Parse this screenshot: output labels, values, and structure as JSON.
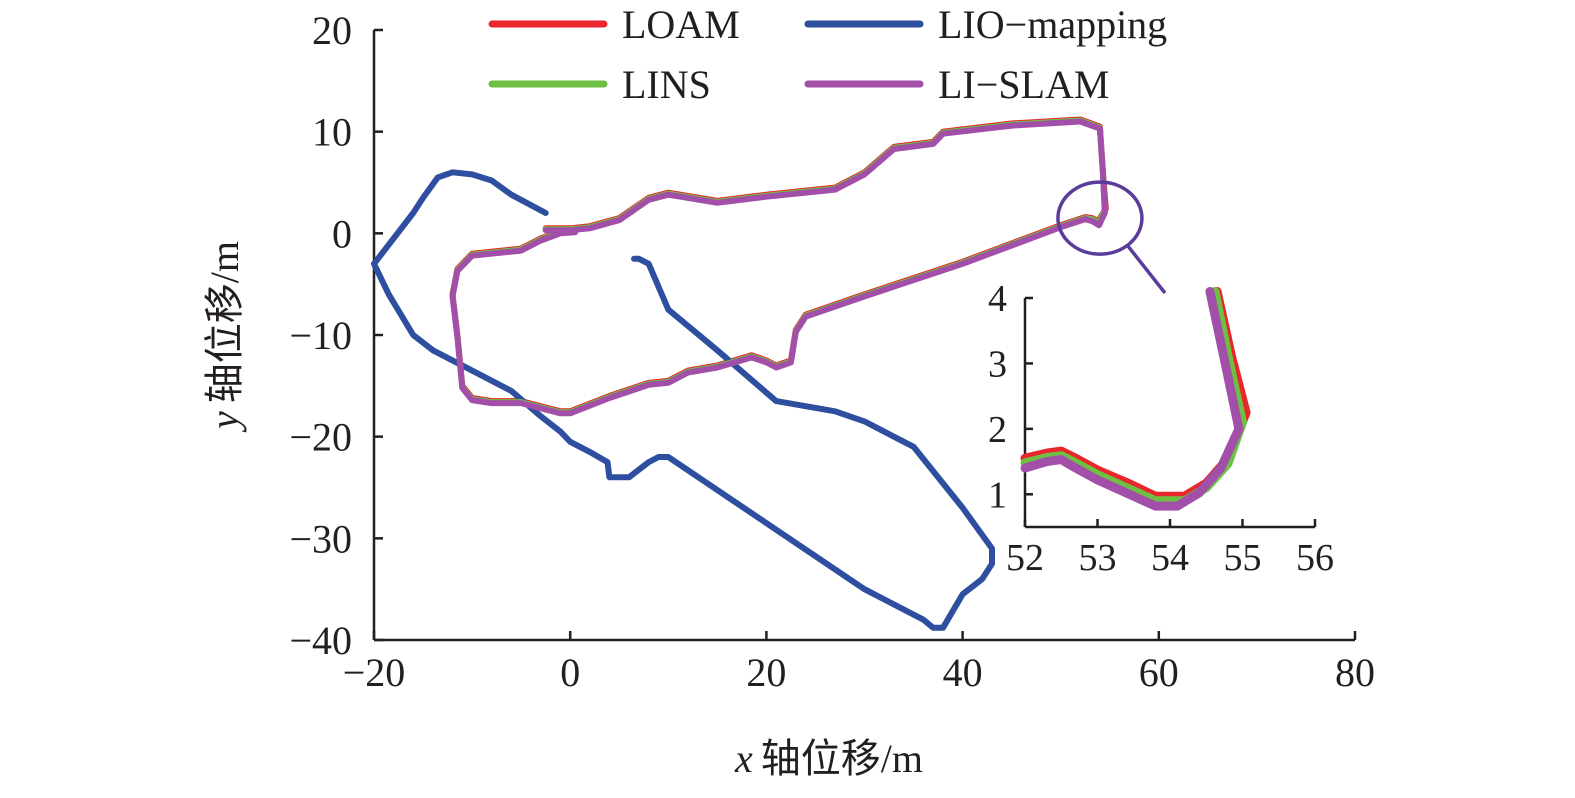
{
  "chart_data": {
    "type": "line",
    "xlabel_var": "x",
    "xlabel_text": "轴位移/m",
    "ylabel_var": "y",
    "ylabel_text": "轴位移/m",
    "xlim": [
      -20,
      80
    ],
    "ylim": [
      -40,
      20
    ],
    "xticks": [
      -20,
      0,
      20,
      40,
      60,
      80
    ],
    "yticks": [
      -40,
      -30,
      -20,
      -10,
      0,
      10,
      20
    ],
    "xtick_labels": [
      "−20",
      "0",
      "20",
      "40",
      "60",
      "80"
    ],
    "ytick_labels": [
      "−40",
      "−30",
      "−20",
      "−10",
      "0",
      "10",
      "20"
    ],
    "legend_position": "top",
    "series": [
      {
        "name": "LOAM",
        "color": "#e8262b",
        "points": [
          [
            -2.5,
            0.5
          ],
          [
            0,
            0.5
          ],
          [
            2,
            0.7
          ],
          [
            5,
            1.5
          ],
          [
            8,
            3.5
          ],
          [
            10,
            4
          ],
          [
            15,
            3.2
          ],
          [
            20,
            3.8
          ],
          [
            25,
            4.3
          ],
          [
            27,
            4.5
          ],
          [
            30,
            6
          ],
          [
            33,
            8.5
          ],
          [
            37,
            9
          ],
          [
            38,
            10
          ],
          [
            45,
            10.8
          ],
          [
            52,
            11.2
          ],
          [
            54,
            10.5
          ],
          [
            54.3,
            6
          ],
          [
            54.6,
            2.4
          ],
          [
            53.8,
            1.2
          ],
          [
            53.2,
            1.5
          ],
          [
            52.5,
            1.6
          ],
          [
            50,
            0.8
          ],
          [
            40,
            -2.8
          ],
          [
            30,
            -6
          ],
          [
            24,
            -8
          ],
          [
            23,
            -9.5
          ],
          [
            22.5,
            -12.5
          ],
          [
            21,
            -13
          ],
          [
            20,
            -12.5
          ],
          [
            18.5,
            -12
          ],
          [
            15,
            -13
          ],
          [
            12,
            -13.5
          ],
          [
            10,
            -14.5
          ],
          [
            8,
            -14.7
          ],
          [
            4,
            -16
          ],
          [
            0,
            -17.5
          ],
          [
            -1,
            -17.5
          ],
          [
            -5,
            -16.5
          ],
          [
            -8,
            -16.5
          ],
          [
            -10,
            -16.2
          ],
          [
            -11,
            -15
          ],
          [
            -11.5,
            -10
          ],
          [
            -12,
            -6
          ],
          [
            -11.5,
            -3.5
          ],
          [
            -10,
            -2
          ],
          [
            -5,
            -1.5
          ],
          [
            -3,
            -0.5
          ],
          [
            -1,
            0.2
          ],
          [
            0.5,
            0.3
          ]
        ]
      },
      {
        "name": "LIO−mapping",
        "color": "#2e4e9f",
        "points": [
          [
            -2.5,
            2
          ],
          [
            -6,
            3.8
          ],
          [
            -8,
            5.2
          ],
          [
            -10,
            5.8
          ],
          [
            -12,
            6
          ],
          [
            -13.5,
            5.5
          ],
          [
            -15,
            3.5
          ],
          [
            -16,
            2
          ],
          [
            -20,
            -3
          ],
          [
            -18.5,
            -6
          ],
          [
            -16,
            -10
          ],
          [
            -14,
            -11.5
          ],
          [
            -10,
            -13.5
          ],
          [
            -6,
            -15.5
          ],
          [
            -3,
            -18
          ],
          [
            -1,
            -19.5
          ],
          [
            0,
            -20.5
          ],
          [
            2,
            -21.5
          ],
          [
            3.8,
            -22.5
          ],
          [
            4,
            -24
          ],
          [
            6,
            -24
          ],
          [
            8,
            -22.5
          ],
          [
            9,
            -22
          ],
          [
            10,
            -22
          ],
          [
            20,
            -28.5
          ],
          [
            30,
            -35
          ],
          [
            36,
            -38
          ],
          [
            37,
            -38.8
          ],
          [
            38,
            -38.8
          ],
          [
            40,
            -35.5
          ],
          [
            42,
            -34
          ],
          [
            43,
            -32.5
          ],
          [
            43,
            -31
          ],
          [
            40,
            -27
          ],
          [
            35,
            -21
          ],
          [
            32,
            -19.5
          ],
          [
            30,
            -18.5
          ],
          [
            27,
            -17.5
          ],
          [
            21,
            -16.5
          ],
          [
            15,
            -11.5
          ],
          [
            10,
            -7.5
          ],
          [
            8,
            -3
          ],
          [
            7,
            -2.5
          ],
          [
            6.5,
            -2.5
          ]
        ]
      },
      {
        "name": "LINS",
        "color": "#6ec043",
        "points": [
          [
            -2.5,
            0.4
          ],
          [
            0,
            0.4
          ],
          [
            2,
            0.6
          ],
          [
            5,
            1.4
          ],
          [
            8,
            3.4
          ],
          [
            10,
            3.9
          ],
          [
            15,
            3.1
          ],
          [
            20,
            3.7
          ],
          [
            25,
            4.2
          ],
          [
            27,
            4.4
          ],
          [
            30,
            5.9
          ],
          [
            33,
            8.4
          ],
          [
            37,
            8.9
          ],
          [
            38,
            9.9
          ],
          [
            45,
            10.7
          ],
          [
            52,
            11.1
          ],
          [
            54,
            10.4
          ],
          [
            54.3,
            6
          ],
          [
            54.5,
            2.2
          ],
          [
            53.8,
            1
          ],
          [
            53.2,
            1.4
          ],
          [
            52.5,
            1.5
          ],
          [
            50,
            0.7
          ],
          [
            40,
            -2.9
          ],
          [
            30,
            -6.1
          ],
          [
            24,
            -8.1
          ],
          [
            23,
            -9.6
          ],
          [
            22.5,
            -12.6
          ],
          [
            21,
            -13.1
          ],
          [
            20,
            -12.6
          ],
          [
            18.5,
            -12.1
          ],
          [
            15,
            -13.1
          ],
          [
            12,
            -13.6
          ],
          [
            10,
            -14.6
          ],
          [
            8,
            -14.8
          ],
          [
            4,
            -16.1
          ],
          [
            0,
            -17.6
          ],
          [
            -1,
            -17.6
          ],
          [
            -5,
            -16.6
          ],
          [
            -8,
            -16.6
          ],
          [
            -10,
            -16.3
          ],
          [
            -11,
            -15.1
          ],
          [
            -11.5,
            -10.1
          ],
          [
            -12,
            -6.1
          ],
          [
            -11.5,
            -3.6
          ],
          [
            -10,
            -2.1
          ],
          [
            -5,
            -1.6
          ],
          [
            -3,
            -0.6
          ],
          [
            -1,
            0.1
          ],
          [
            0.5,
            0.2
          ]
        ]
      },
      {
        "name": "LI−SLAM",
        "color": "#a24fa9",
        "points": [
          [
            -2.5,
            0.3
          ],
          [
            0,
            0.3
          ],
          [
            2,
            0.5
          ],
          [
            5,
            1.3
          ],
          [
            8,
            3.3
          ],
          [
            10,
            3.8
          ],
          [
            15,
            3
          ],
          [
            20,
            3.6
          ],
          [
            25,
            4.1
          ],
          [
            27,
            4.3
          ],
          [
            30,
            5.8
          ],
          [
            33,
            8.3
          ],
          [
            37,
            8.8
          ],
          [
            38,
            9.8
          ],
          [
            45,
            10.6
          ],
          [
            52,
            11
          ],
          [
            54,
            10.3
          ],
          [
            54.3,
            6
          ],
          [
            54.5,
            2
          ],
          [
            53.9,
            0.8
          ],
          [
            53.2,
            1.2
          ],
          [
            52.5,
            1.4
          ],
          [
            50,
            0.6
          ],
          [
            40,
            -3
          ],
          [
            30,
            -6.2
          ],
          [
            24,
            -8.2
          ],
          [
            23,
            -9.7
          ],
          [
            22.5,
            -12.7
          ],
          [
            21,
            -13.2
          ],
          [
            20,
            -12.7
          ],
          [
            18.5,
            -12.2
          ],
          [
            15,
            -13.2
          ],
          [
            12,
            -13.7
          ],
          [
            10,
            -14.7
          ],
          [
            8,
            -14.9
          ],
          [
            4,
            -16.2
          ],
          [
            0,
            -17.7
          ],
          [
            -1,
            -17.7
          ],
          [
            -5,
            -16.7
          ],
          [
            -8,
            -16.7
          ],
          [
            -10,
            -16.4
          ],
          [
            -11,
            -15.2
          ],
          [
            -11.5,
            -10.2
          ],
          [
            -12,
            -6.2
          ],
          [
            -11.5,
            -3.7
          ],
          [
            -10,
            -2.2
          ],
          [
            -5,
            -1.7
          ],
          [
            -3,
            -0.7
          ],
          [
            -1,
            0
          ],
          [
            0.5,
            0.1
          ]
        ]
      }
    ],
    "highlight": {
      "center": [
        54,
        1.5
      ],
      "color": "#5b3c9a",
      "note": "ellipse marking the zoomed region, connected to the inset"
    },
    "inset": {
      "xlim": [
        52,
        56
      ],
      "ylim": [
        0.5,
        4
      ],
      "xticks": [
        52,
        53,
        54,
        55,
        56
      ],
      "yticks": [
        1,
        2,
        3,
        4
      ],
      "xtick_labels": [
        "52",
        "53",
        "54",
        "55",
        "56"
      ],
      "ytick_labels": [
        "1",
        "2",
        "3",
        "4"
      ],
      "series": [
        {
          "name": "LOAM",
          "color": "#e8262b",
          "points": [
            [
              52,
              1.55
            ],
            [
              52.3,
              1.63
            ],
            [
              52.5,
              1.66
            ],
            [
              52.7,
              1.55
            ],
            [
              53,
              1.37
            ],
            [
              53.4,
              1.18
            ],
            [
              53.8,
              0.97
            ],
            [
              54.2,
              0.97
            ],
            [
              54.5,
              1.17
            ],
            [
              54.8,
              1.55
            ],
            [
              55.05,
              2.25
            ],
            [
              54.85,
              3.1
            ],
            [
              54.65,
              4.1
            ]
          ]
        },
        {
          "name": "LINS",
          "color": "#6ec043",
          "points": [
            [
              52,
              1.48
            ],
            [
              52.3,
              1.56
            ],
            [
              52.5,
              1.59
            ],
            [
              52.7,
              1.48
            ],
            [
              53,
              1.3
            ],
            [
              53.4,
              1.1
            ],
            [
              53.8,
              0.9
            ],
            [
              54.2,
              0.9
            ],
            [
              54.5,
              1.1
            ],
            [
              54.8,
              1.47
            ],
            [
              55,
              2.1
            ],
            [
              54.82,
              3
            ],
            [
              54.62,
              4.1
            ]
          ]
        },
        {
          "name": "LI−SLAM",
          "color": "#a24fa9",
          "points": [
            [
              52,
              1.4
            ],
            [
              52.3,
              1.5
            ],
            [
              52.5,
              1.53
            ],
            [
              52.7,
              1.4
            ],
            [
              53,
              1.22
            ],
            [
              53.4,
              1.02
            ],
            [
              53.8,
              0.82
            ],
            [
              54.1,
              0.82
            ],
            [
              54.4,
              1.02
            ],
            [
              54.7,
              1.4
            ],
            [
              54.95,
              2
            ],
            [
              54.78,
              2.9
            ],
            [
              54.55,
              4.1
            ]
          ]
        }
      ]
    }
  }
}
